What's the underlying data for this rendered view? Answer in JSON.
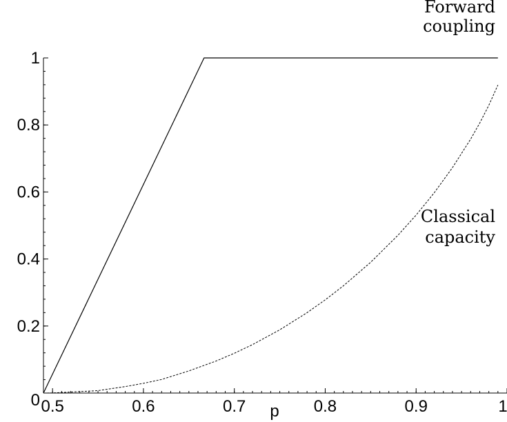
{
  "chart_data": {
    "type": "line",
    "xlabel": "p",
    "ylabel": "",
    "xlim": [
      0.49,
      1.0
    ],
    "ylim": [
      0,
      1.0
    ],
    "grid": false,
    "x_ticks": [
      {
        "value": 0.5,
        "label": "0.5"
      },
      {
        "value": 0.6,
        "label": "0.6"
      },
      {
        "value": 0.7,
        "label": "0.7"
      },
      {
        "value": 0.8,
        "label": "0.8"
      },
      {
        "value": 0.9,
        "label": "0.9"
      },
      {
        "value": 1.0,
        "label": "1"
      }
    ],
    "y_ticks": [
      {
        "value": 0,
        "label": "0"
      },
      {
        "value": 0.2,
        "label": "0.2"
      },
      {
        "value": 0.4,
        "label": "0.4"
      },
      {
        "value": 0.6,
        "label": "0.6"
      },
      {
        "value": 0.8,
        "label": "0.8"
      },
      {
        "value": 1.0,
        "label": "1"
      }
    ],
    "series": [
      {
        "style": "solid",
        "color": "#000000",
        "x": [
          0.49,
          0.6667,
          0.99
        ],
        "y": [
          0.0,
          1.0,
          1.0
        ]
      },
      {
        "style": "dashed",
        "color": "#000000",
        "x": [
          0.49,
          0.5,
          0.52,
          0.55,
          0.58,
          0.6,
          0.62,
          0.65,
          0.68,
          0.7,
          0.72,
          0.75,
          0.78,
          0.8,
          0.82,
          0.85,
          0.88,
          0.9,
          0.92,
          0.94,
          0.96,
          0.97,
          0.98,
          0.99
        ],
        "y": [
          0.0,
          0.0003,
          0.0029,
          0.0072,
          0.0193,
          0.029,
          0.0405,
          0.066,
          0.0956,
          0.1187,
          0.1445,
          0.1887,
          0.2398,
          0.2781,
          0.3199,
          0.3902,
          0.4707,
          0.531,
          0.5978,
          0.6727,
          0.7577,
          0.8056,
          0.8586,
          0.9192
        ]
      }
    ],
    "annotations": [
      {
        "lines": [
          "Forward",
          "coupling"
        ],
        "series_index": 0
      },
      {
        "lines": [
          "Classical",
          "capacity"
        ],
        "series_index": 1
      }
    ]
  }
}
